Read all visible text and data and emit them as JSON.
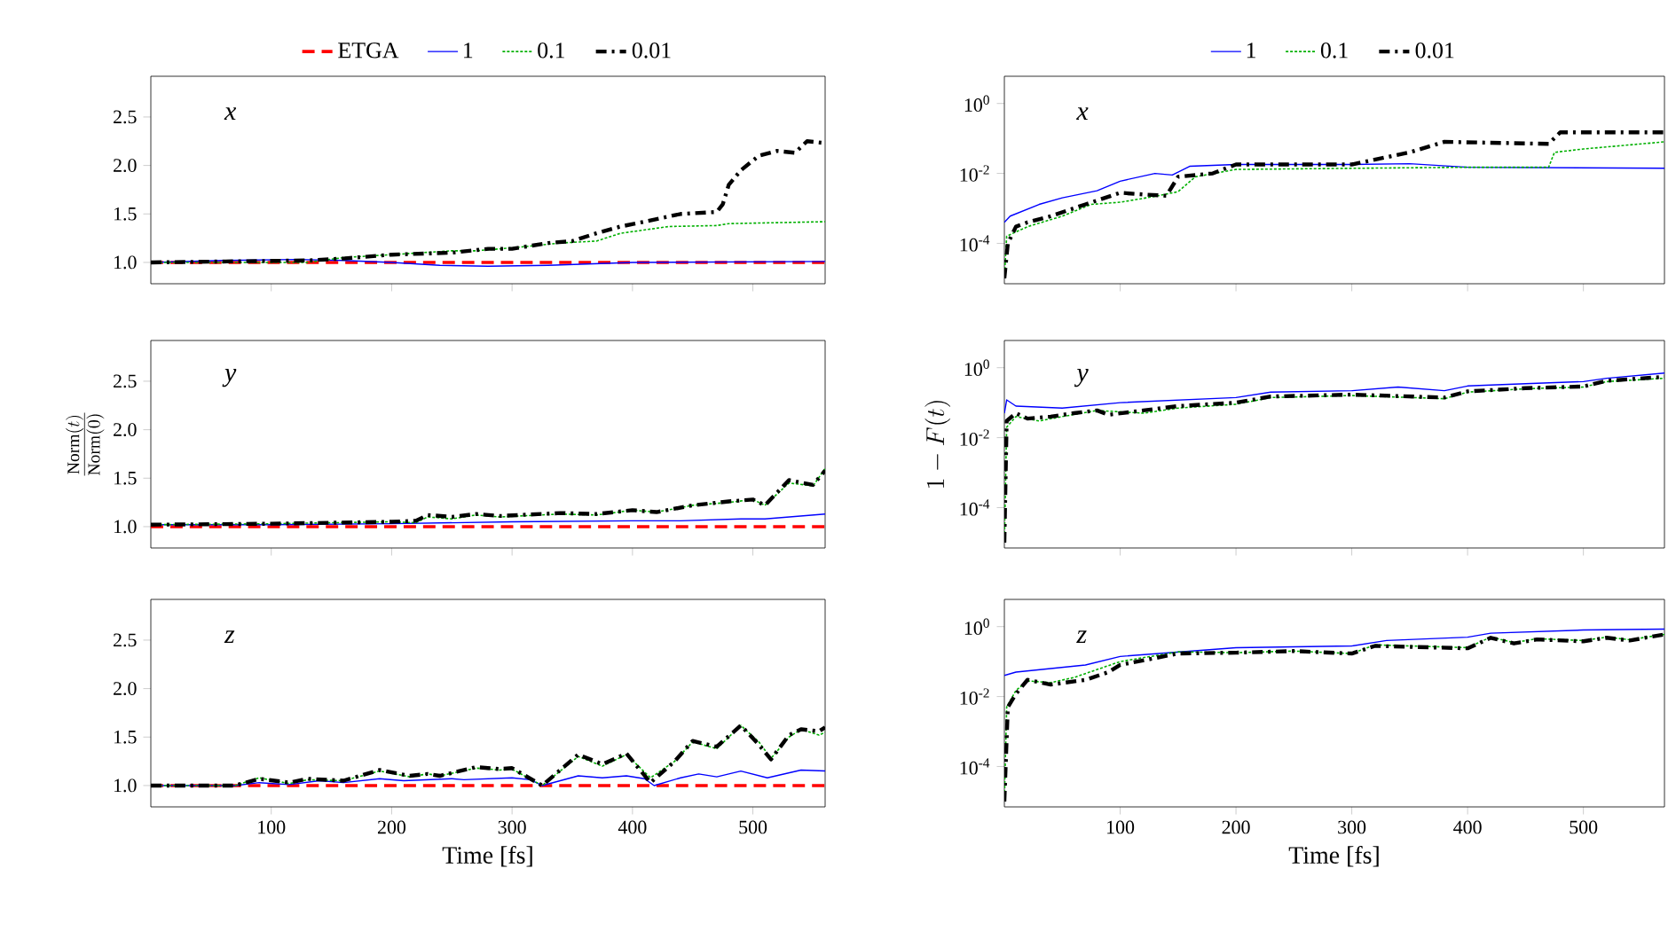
{
  "chart_data": [
    {
      "type": "line",
      "annotations": [
        "x"
      ],
      "xlim": [
        0,
        560
      ],
      "ylim": [
        0.78,
        2.92
      ],
      "xticks": [
        100,
        200,
        300,
        400,
        500
      ],
      "yticks": [
        {
          "value": 1,
          "label": "1.0"
        },
        {
          "value": 1.5,
          "label": "1.5"
        },
        {
          "value": 2,
          "label": "2.0"
        },
        {
          "value": 2.5,
          "label": "2.5"
        }
      ],
      "tick_labels": "y",
      "legend": "top",
      "series": [
        {
          "name": "ETGA",
          "color": "#ff0000",
          "line_style": "dashed",
          "x": [
            0,
            560
          ],
          "values": [
            1,
            1
          ]
        },
        {
          "name": "1",
          "color": "#0000ff",
          "line_style": "solid",
          "x": [
            0,
            60,
            120,
            160,
            200,
            240,
            280,
            330,
            400,
            560
          ],
          "values": [
            1.0,
            1.02,
            1.03,
            1.02,
            1.0,
            0.97,
            0.96,
            0.97,
            1.0,
            1.01
          ]
        },
        {
          "name": "0.1",
          "color": "#00b000",
          "line_style": "dotted",
          "x": [
            0,
            130,
            160,
            200,
            250,
            270,
            300,
            340,
            370,
            390,
            430,
            470,
            480,
            560
          ],
          "values": [
            1.0,
            1.0,
            1.05,
            1.08,
            1.12,
            1.12,
            1.15,
            1.2,
            1.22,
            1.3,
            1.37,
            1.38,
            1.4,
            1.42
          ]
        },
        {
          "name": "0.01",
          "color": "#000000",
          "line_style": "dashdot",
          "x": [
            0,
            130,
            160,
            200,
            250,
            280,
            300,
            330,
            350,
            370,
            390,
            410,
            440,
            470,
            475,
            480,
            490,
            505,
            520,
            535,
            545,
            560
          ],
          "values": [
            1.0,
            1.02,
            1.04,
            1.08,
            1.1,
            1.14,
            1.14,
            1.2,
            1.22,
            1.3,
            1.37,
            1.42,
            1.5,
            1.52,
            1.6,
            1.8,
            1.95,
            2.1,
            2.15,
            2.13,
            2.25,
            2.23
          ]
        }
      ]
    },
    {
      "type": "line",
      "annotations": [
        "x"
      ],
      "log": "y",
      "xlim": [
        0,
        570
      ],
      "ylim": [
        7e-06,
        6
      ],
      "xticks": [
        100,
        200,
        300,
        400,
        500
      ],
      "yticks": [
        {
          "value": 0.0001,
          "label": "10$^{-4}$"
        },
        {
          "value": 0.01,
          "label": "10$^{-2}$"
        },
        {
          "value": 1,
          "label": "10$^{0}$"
        }
      ],
      "tick_labels": "y",
      "legend": "top",
      "series": [
        {
          "name": "1",
          "color": "#0000ff",
          "line_style": "solid",
          "x": [
            0,
            5,
            30,
            50,
            80,
            100,
            130,
            145,
            160,
            200,
            300,
            350,
            400,
            570
          ],
          "values": [
            0.0004,
            0.0006,
            0.0013,
            0.002,
            0.0032,
            0.006,
            0.01,
            0.009,
            0.016,
            0.018,
            0.018,
            0.019,
            0.015,
            0.014
          ]
        },
        {
          "name": "0.1",
          "color": "#00b000",
          "line_style": "dotted",
          "x": [
            0,
            2,
            20,
            50,
            75,
            100,
            130,
            150,
            165,
            200,
            300,
            400,
            470,
            475,
            500,
            570
          ],
          "values": [
            1e-05,
            0.00016,
            0.0003,
            0.0006,
            0.0013,
            0.0015,
            0.0022,
            0.003,
            0.008,
            0.013,
            0.014,
            0.015,
            0.015,
            0.04,
            0.05,
            0.08
          ]
        },
        {
          "name": "0.01",
          "color": "#000000",
          "line_style": "dashdot",
          "x": [
            0,
            3,
            10,
            20,
            40,
            70,
            100,
            120,
            140,
            150,
            180,
            200,
            300,
            350,
            380,
            470,
            480,
            570
          ],
          "values": [
            1e-05,
            0.0001,
            0.0003,
            0.0004,
            0.0006,
            0.0013,
            0.0028,
            0.0025,
            0.0023,
            0.008,
            0.01,
            0.018,
            0.018,
            0.04,
            0.08,
            0.07,
            0.15,
            0.15
          ]
        }
      ]
    },
    {
      "type": "line",
      "annotations": [
        "y"
      ],
      "ylabel": "\\frac{\\mathrm{Norm}(t)}{\\mathrm{Norm}(0)}",
      "xlim": [
        0,
        560
      ],
      "ylim": [
        0.78,
        2.92
      ],
      "xticks": [
        100,
        200,
        300,
        400,
        500
      ],
      "yticks": [
        {
          "value": 1,
          "label": "1.0"
        },
        {
          "value": 1.5,
          "label": "1.5"
        },
        {
          "value": 2,
          "label": "2.0"
        },
        {
          "value": 2.5,
          "label": "2.5"
        }
      ],
      "tick_labels": "y",
      "series": [
        {
          "color": "#ff0000",
          "line_style": "dashed",
          "x": [
            0,
            560
          ],
          "values": [
            1,
            1
          ]
        },
        {
          "color": "#0000ff",
          "line_style": "solid",
          "x": [
            0,
            100,
            200,
            300,
            400,
            440,
            490,
            510,
            560
          ],
          "values": [
            1.02,
            1.02,
            1.03,
            1.05,
            1.06,
            1.06,
            1.08,
            1.08,
            1.13
          ]
        },
        {
          "color": "#00b000",
          "line_style": "dotted",
          "x": [
            0,
            100,
            200,
            220,
            230,
            250,
            270,
            290,
            340,
            370,
            400,
            420,
            450,
            480,
            500,
            510,
            530,
            550,
            560
          ],
          "values": [
            1.02,
            1.03,
            1.05,
            1.04,
            1.1,
            1.08,
            1.12,
            1.1,
            1.13,
            1.12,
            1.17,
            1.15,
            1.22,
            1.25,
            1.28,
            1.22,
            1.45,
            1.42,
            1.6
          ]
        },
        {
          "color": "#000000",
          "line_style": "dashdot",
          "x": [
            0,
            100,
            200,
            220,
            230,
            250,
            270,
            290,
            340,
            370,
            400,
            420,
            450,
            480,
            500,
            510,
            530,
            550,
            560
          ],
          "values": [
            1.02,
            1.03,
            1.05,
            1.06,
            1.12,
            1.1,
            1.13,
            1.11,
            1.14,
            1.13,
            1.17,
            1.15,
            1.22,
            1.26,
            1.28,
            1.22,
            1.48,
            1.43,
            1.58
          ]
        }
      ]
    },
    {
      "type": "line",
      "annotations": [
        "y"
      ],
      "ylabel": "1 - F(t)",
      "log": "y",
      "xlim": [
        0,
        570
      ],
      "ylim": [
        7e-06,
        6
      ],
      "xticks": [
        100,
        200,
        300,
        400,
        500
      ],
      "yticks": [
        {
          "value": 0.0001,
          "label": "10$^{-4}$"
        },
        {
          "value": 0.01,
          "label": "10$^{-2}$"
        },
        {
          "value": 1,
          "label": "10$^{0}$"
        }
      ],
      "tick_labels": "y",
      "series": [
        {
          "color": "#0000ff",
          "line_style": "solid",
          "x": [
            0,
            2,
            10,
            50,
            100,
            200,
            230,
            300,
            340,
            380,
            400,
            450,
            500,
            520,
            570
          ],
          "values": [
            0.05,
            0.12,
            0.08,
            0.07,
            0.1,
            0.14,
            0.2,
            0.22,
            0.28,
            0.22,
            0.3,
            0.35,
            0.4,
            0.5,
            0.7
          ]
        },
        {
          "color": "#00b000",
          "line_style": "dotted",
          "x": [
            0,
            2,
            10,
            30,
            50,
            80,
            120,
            150,
            200,
            230,
            300,
            380,
            400,
            450,
            500,
            520,
            570
          ],
          "values": [
            1e-05,
            0.02,
            0.04,
            0.03,
            0.04,
            0.06,
            0.05,
            0.07,
            0.09,
            0.14,
            0.16,
            0.13,
            0.2,
            0.25,
            0.28,
            0.4,
            0.5
          ]
        },
        {
          "color": "#000000",
          "line_style": "dashdot",
          "x": [
            0,
            2,
            10,
            20,
            40,
            60,
            80,
            90,
            120,
            150,
            200,
            230,
            300,
            380,
            400,
            450,
            500,
            520,
            570
          ],
          "values": [
            1e-05,
            0.03,
            0.05,
            0.035,
            0.04,
            0.05,
            0.06,
            0.045,
            0.06,
            0.08,
            0.1,
            0.15,
            0.17,
            0.14,
            0.21,
            0.26,
            0.29,
            0.42,
            0.55
          ]
        }
      ]
    },
    {
      "type": "line",
      "annotations": [
        "z"
      ],
      "xlabel": "Time [fs]",
      "xlim": [
        0,
        560
      ],
      "ylim": [
        0.78,
        2.92
      ],
      "xticks": [
        100,
        200,
        300,
        400,
        500
      ],
      "yticks": [
        {
          "value": 1,
          "label": "1.0"
        },
        {
          "value": 1.5,
          "label": "1.5"
        },
        {
          "value": 2,
          "label": "2.0"
        },
        {
          "value": 2.5,
          "label": "2.5"
        }
      ],
      "series": [
        {
          "color": "#ff0000",
          "line_style": "dashed",
          "x": [
            0,
            560
          ],
          "values": [
            1,
            1
          ]
        },
        {
          "color": "#0000ff",
          "line_style": "solid",
          "x": [
            0,
            70,
            90,
            115,
            140,
            160,
            190,
            210,
            250,
            260,
            300,
            315,
            325,
            355,
            375,
            395,
            410,
            418,
            440,
            455,
            470,
            490,
            512,
            540,
            560
          ],
          "values": [
            1.0,
            1.0,
            1.03,
            1.01,
            1.05,
            1.03,
            1.07,
            1.05,
            1.07,
            1.06,
            1.08,
            1.06,
            1.0,
            1.1,
            1.08,
            1.1,
            1.07,
            1.0,
            1.08,
            1.12,
            1.09,
            1.15,
            1.08,
            1.16,
            1.15
          ]
        },
        {
          "color": "#00b000",
          "line_style": "dotted",
          "x": [
            0,
            70,
            90,
            115,
            130,
            160,
            190,
            215,
            230,
            240,
            270,
            290,
            300,
            325,
            355,
            375,
            395,
            415,
            435,
            450,
            470,
            490,
            505,
            515,
            530,
            540,
            555,
            560
          ],
          "values": [
            1.0,
            1.0,
            1.08,
            1.02,
            1.06,
            1.05,
            1.15,
            1.09,
            1.12,
            1.1,
            1.18,
            1.16,
            1.17,
            1.0,
            1.3,
            1.2,
            1.32,
            1.08,
            1.25,
            1.45,
            1.38,
            1.62,
            1.45,
            1.28,
            1.5,
            1.58,
            1.52,
            1.55
          ]
        },
        {
          "color": "#000000",
          "line_style": "dashdot",
          "x": [
            0,
            70,
            90,
            115,
            130,
            160,
            190,
            215,
            230,
            240,
            270,
            290,
            300,
            325,
            355,
            375,
            395,
            415,
            435,
            450,
            470,
            490,
            505,
            515,
            530,
            540,
            555,
            560
          ],
          "values": [
            1.0,
            1.0,
            1.07,
            1.03,
            1.07,
            1.05,
            1.16,
            1.1,
            1.12,
            1.1,
            1.19,
            1.17,
            1.18,
            1.0,
            1.32,
            1.22,
            1.33,
            1.03,
            1.25,
            1.46,
            1.4,
            1.62,
            1.42,
            1.27,
            1.52,
            1.58,
            1.56,
            1.6
          ]
        }
      ]
    },
    {
      "type": "line",
      "annotations": [
        "z"
      ],
      "xlabel": "Time [fs]",
      "log": "y",
      "xlim": [
        0,
        570
      ],
      "ylim": [
        7e-06,
        6
      ],
      "xticks": [
        100,
        200,
        300,
        400,
        500
      ],
      "yticks": [
        {
          "value": 0.0001,
          "label": "10$^{-4}$"
        },
        {
          "value": 0.01,
          "label": "10$^{-2}$"
        },
        {
          "value": 1,
          "label": "10$^{0}$"
        }
      ],
      "series": [
        {
          "color": "#0000ff",
          "line_style": "solid",
          "x": [
            0,
            10,
            70,
            100,
            200,
            300,
            330,
            400,
            420,
            500,
            570
          ],
          "values": [
            0.04,
            0.05,
            0.08,
            0.14,
            0.25,
            0.28,
            0.4,
            0.5,
            0.65,
            0.8,
            0.85
          ]
        },
        {
          "color": "#00b000",
          "line_style": "dotted",
          "x": [
            0,
            2,
            10,
            20,
            40,
            60,
            100,
            150,
            200,
            250,
            300,
            320,
            400,
            420,
            440,
            460,
            500,
            520,
            540,
            570
          ],
          "values": [
            1e-05,
            0.005,
            0.015,
            0.028,
            0.025,
            0.035,
            0.1,
            0.19,
            0.18,
            0.2,
            0.17,
            0.3,
            0.25,
            0.5,
            0.35,
            0.45,
            0.4,
            0.5,
            0.42,
            0.6
          ]
        },
        {
          "color": "#000000",
          "line_style": "dashdot",
          "x": [
            0,
            3,
            10,
            20,
            40,
            70,
            90,
            100,
            150,
            200,
            250,
            300,
            320,
            400,
            420,
            440,
            460,
            500,
            520,
            540,
            570
          ],
          "values": [
            1e-05,
            0.005,
            0.012,
            0.03,
            0.022,
            0.03,
            0.05,
            0.08,
            0.17,
            0.18,
            0.2,
            0.17,
            0.28,
            0.24,
            0.48,
            0.33,
            0.43,
            0.38,
            0.48,
            0.4,
            0.6
          ]
        }
      ]
    }
  ]
}
